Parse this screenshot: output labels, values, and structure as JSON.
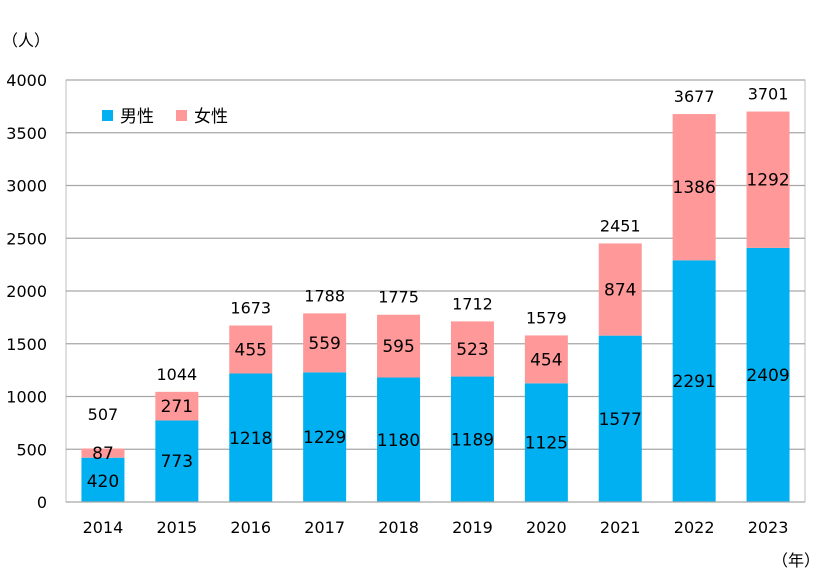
{
  "chart_data": {
    "type": "bar",
    "stacked": true,
    "title": "",
    "ylabel": "（人）",
    "xlabel": "（年）",
    "ylim": [
      0,
      4000
    ],
    "yticks": [
      0,
      500,
      1000,
      1500,
      2000,
      2500,
      3000,
      3500,
      4000
    ],
    "grid": true,
    "legend_position": "top-left",
    "categories": [
      "2014",
      "2015",
      "2016",
      "2017",
      "2018",
      "2019",
      "2020",
      "2021",
      "2022",
      "2023"
    ],
    "series": [
      {
        "name": "男性",
        "color": "#00B0F0",
        "values": [
          420,
          773,
          1218,
          1229,
          1180,
          1189,
          1125,
          1577,
          2291,
          2409
        ]
      },
      {
        "name": "女性",
        "color": "#FF9999",
        "values": [
          87,
          271,
          455,
          559,
          595,
          523,
          454,
          874,
          1386,
          1292
        ]
      }
    ],
    "totals": [
      507,
      1044,
      1673,
      1788,
      1775,
      1712,
      1579,
      2451,
      3677,
      3701
    ]
  }
}
